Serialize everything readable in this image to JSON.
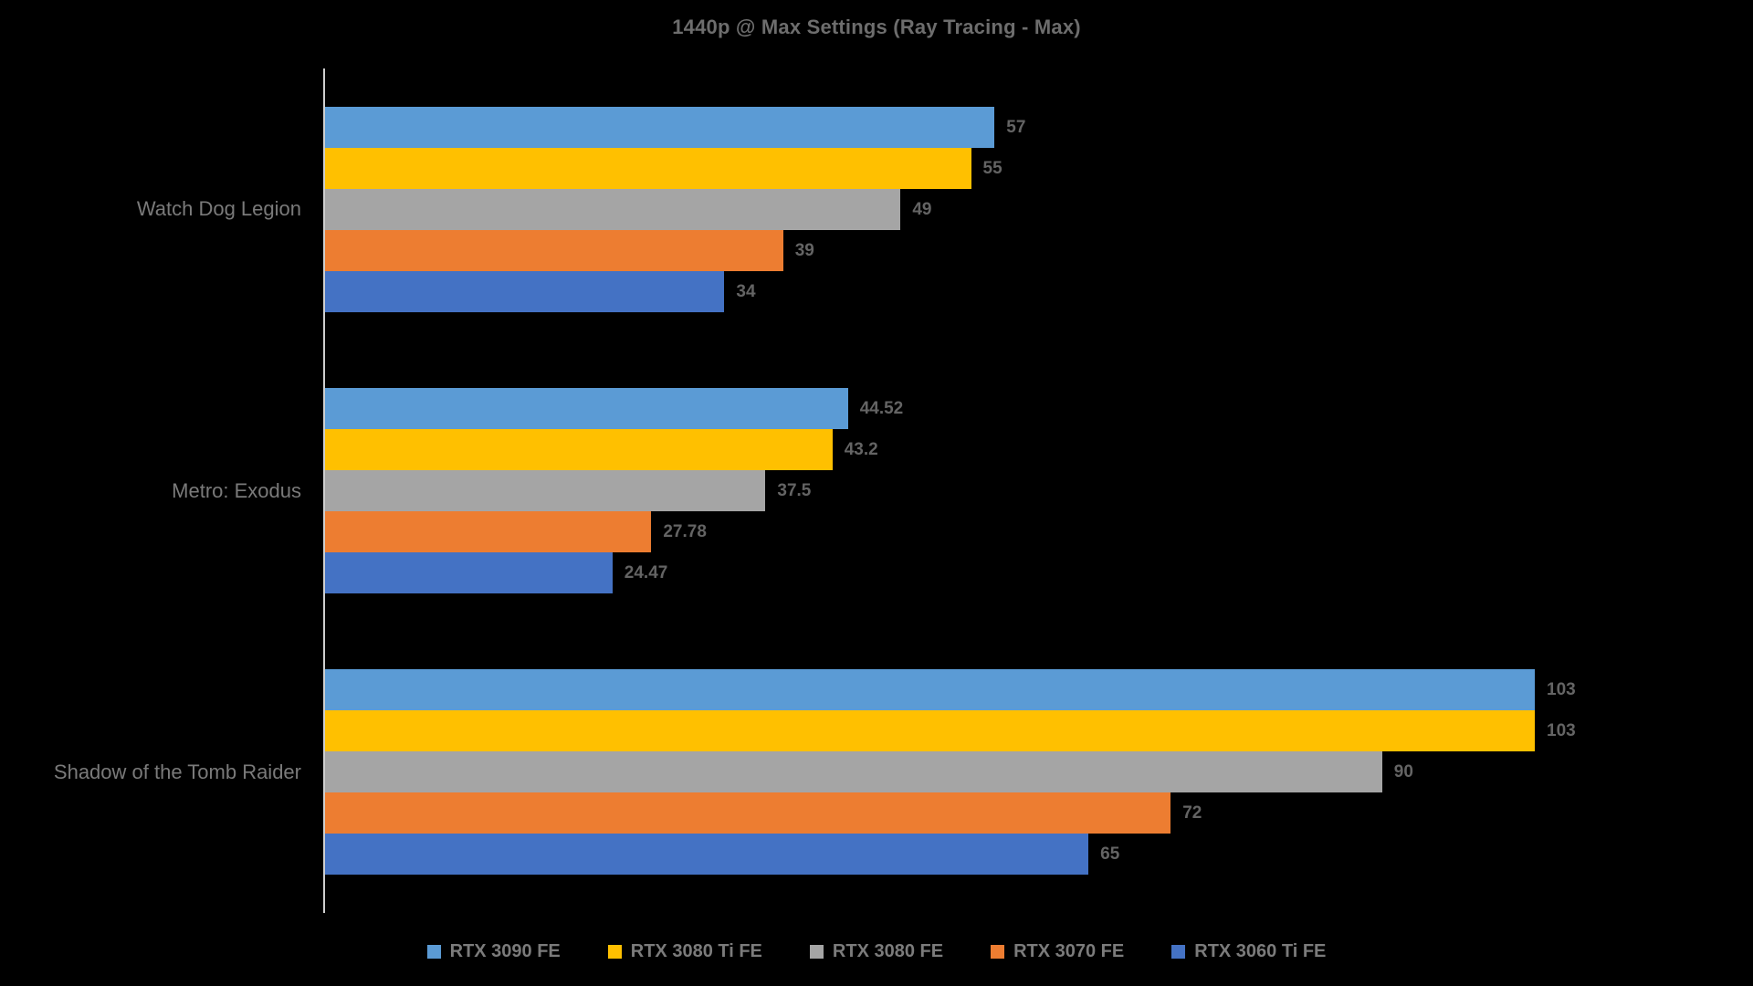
{
  "title": "1440p @ Max Settings (Ray Tracing - Max)",
  "chart_data": {
    "type": "bar",
    "orientation": "horizontal",
    "title": "1440p @ Max Settings (Ray Tracing - Max)",
    "categories": [
      "Watch Dog Legion",
      "Metro: Exodus",
      "Shadow of the Tomb Raider"
    ],
    "series": [
      {
        "name": "RTX 3090 FE",
        "color": "#5B9BD5",
        "values": [
          57,
          44.52,
          103
        ]
      },
      {
        "name": "RTX 3080 Ti FE",
        "color": "#FFC000",
        "values": [
          55,
          43.2,
          103
        ]
      },
      {
        "name": "RTX 3080 FE",
        "color": "#A5A5A5",
        "values": [
          49,
          37.5,
          90
        ]
      },
      {
        "name": "RTX 3070 FE",
        "color": "#ED7D31",
        "values": [
          39,
          27.78,
          72
        ]
      },
      {
        "name": "RTX 3060 Ti FE",
        "color": "#4472C4",
        "values": [
          34,
          24.47,
          65
        ]
      }
    ],
    "data_labels": [
      "57",
      "55",
      "49",
      "39",
      "34",
      "44.52",
      "43.2",
      "37.5",
      "27.78",
      "24.47",
      "103",
      "103",
      "90",
      "72",
      "65"
    ],
    "value_axis": {
      "min": 0,
      "max": 103,
      "visible": false
    },
    "grid": false,
    "legend_position": "bottom",
    "background_color": "#000000",
    "axis_line_color": "#cfcfcf",
    "text_color": "#6d6d6d"
  }
}
